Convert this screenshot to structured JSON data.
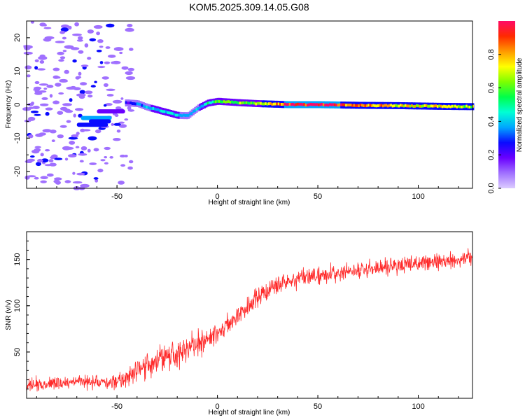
{
  "title": "KOM5.2025.309.14.05.G08",
  "colors": {
    "axis": "#000000",
    "snr_line": "#ff2a2a",
    "colormap": [
      "#dcccff",
      "#a070ff",
      "#6a00ff",
      "#0a0aff",
      "#00a6ff",
      "#00ffd5",
      "#00ff4a",
      "#7dff00",
      "#ffff00",
      "#ff9900",
      "#ff2a00",
      "#ff0a66"
    ]
  },
  "chart_data": [
    {
      "type": "heatmap",
      "name": "spectrogram",
      "xlabel": "Height of straight line (km)",
      "ylabel": "Frequency (Hz)",
      "xlim": [
        -95,
        127
      ],
      "ylim": [
        -25,
        25
      ],
      "xticks": [
        -50,
        0,
        50,
        100
      ],
      "yticks": [
        -20,
        -10,
        0,
        10,
        20
      ],
      "ridge": {
        "x": [
          -45,
          -40,
          -35,
          -30,
          -25,
          -20,
          -15,
          -10,
          -5,
          0,
          10,
          20,
          35,
          50,
          70,
          90,
          110,
          127
        ],
        "freq": [
          0.5,
          0.3,
          -0.8,
          -1.6,
          -2.4,
          -3.2,
          -3.3,
          -1.0,
          0.5,
          1.0,
          0.6,
          0.3,
          0.0,
          0.0,
          -0.2,
          -0.3,
          -0.5,
          -0.6
        ],
        "amplitude": [
          0.22,
          0.3,
          0.38,
          0.42,
          0.45,
          0.4,
          0.35,
          0.38,
          0.48,
          0.58,
          0.6,
          0.62,
          0.95,
          0.98,
          0.85,
          0.75,
          0.7,
          0.65
        ]
      },
      "colorbar": {
        "label": "Normalized spectral amplitude",
        "range": [
          0,
          1
        ],
        "ticks": [
          "0.0",
          "0.2",
          "0.4",
          "0.6",
          "0.8"
        ]
      }
    },
    {
      "type": "line",
      "name": "snr",
      "xlabel": "Height of straight line (km)",
      "ylabel": "SNR (v/v)",
      "xlim": [
        -95,
        127
      ],
      "ylim": [
        0,
        180
      ],
      "xticks": [
        -50,
        0,
        50,
        100
      ],
      "yticks": [
        50,
        100,
        150
      ],
      "series": [
        {
          "name": "SNR",
          "x": [
            -95,
            -80,
            -70,
            -60,
            -50,
            -45,
            -40,
            -30,
            -20,
            -10,
            0,
            10,
            20,
            30,
            40,
            50,
            60,
            70,
            80,
            90,
            100,
            110,
            120,
            127
          ],
          "mean": [
            14,
            16,
            18,
            17,
            18,
            22,
            32,
            42,
            50,
            58,
            70,
            88,
            110,
            124,
            130,
            133,
            135,
            138,
            141,
            143,
            145,
            148,
            150,
            152
          ],
          "noise_amplitude": [
            12,
            12,
            13,
            14,
            15,
            18,
            25,
            26,
            26,
            26,
            24,
            22,
            20,
            18,
            17,
            16,
            16,
            16,
            16,
            16,
            16,
            16,
            16,
            16
          ]
        }
      ]
    }
  ]
}
